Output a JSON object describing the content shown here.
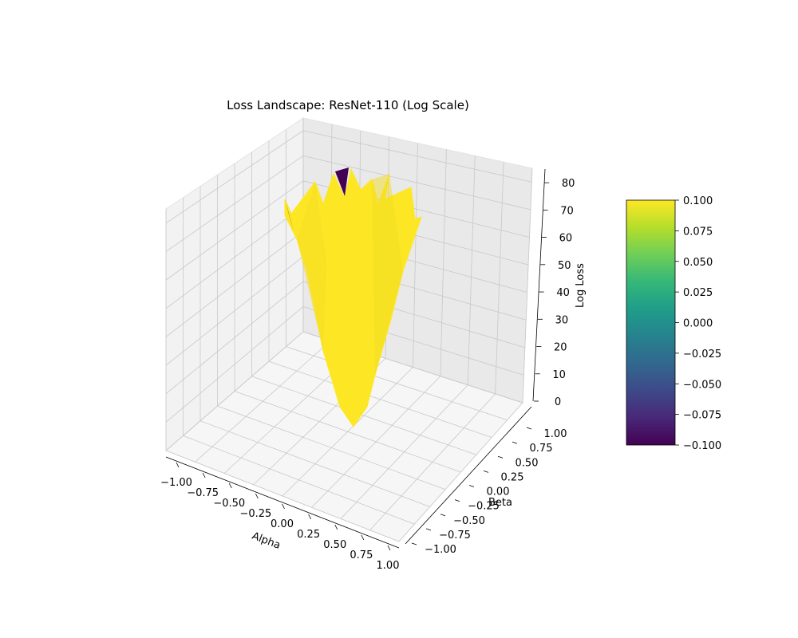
{
  "chart_data": {
    "type": "surface3d",
    "title": "Loss Landscape: ResNet-110 (Log Scale)",
    "xlabel": "Alpha",
    "ylabel": "Beta",
    "zlabel": "Log Loss",
    "xlim": [
      -1.0,
      1.0
    ],
    "ylim": [
      -1.0,
      1.0
    ],
    "zlim": [
      0,
      85
    ],
    "x_ticks": [
      "−1.00",
      "−0.75",
      "−0.50",
      "−0.25",
      "0.00",
      "0.25",
      "0.50",
      "0.75",
      "1.00"
    ],
    "y_ticks": [
      "−1.00",
      "−0.75",
      "−0.50",
      "−0.25",
      "0.00",
      "0.25",
      "0.50",
      "0.75",
      "1.00"
    ],
    "z_ticks": [
      "0",
      "10",
      "20",
      "30",
      "40",
      "50",
      "60",
      "70",
      "80"
    ],
    "grid": true,
    "surface_color": "#fde725",
    "edge_color": "#440154",
    "colorbar": {
      "min": -0.1,
      "max": 0.1,
      "tick_labels": [
        "−0.100",
        "−0.075",
        "−0.050",
        "−0.025",
        "0.000",
        "0.025",
        "0.050",
        "0.075",
        "0.100"
      ],
      "colormap": [
        "#440154",
        "#482878",
        "#3e4989",
        "#31688e",
        "#26828e",
        "#1f9e89",
        "#35b779",
        "#6ece58",
        "#b5de2b",
        "#fde725"
      ]
    },
    "surface_min": {
      "alpha": 0.0,
      "beta": 0.0,
      "log_loss": 0
    },
    "surface_rim_max_log_loss": 82
  }
}
